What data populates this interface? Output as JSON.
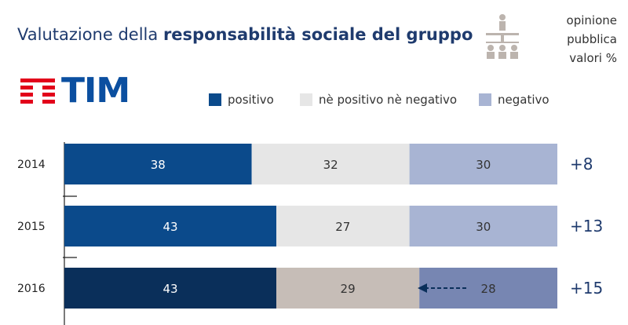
{
  "header": {
    "title_regular": "Valutazione della ",
    "title_bold": "responsabilità sociale del gruppo",
    "note_lines": [
      "opinione",
      "pubblica",
      "valori %"
    ],
    "audience_icon": "audience-presentation-icon"
  },
  "logo": {
    "text": "TIM",
    "color": "#0b4fa0",
    "stripes_color": "#e2001a"
  },
  "legend": [
    {
      "label": "positivo",
      "color": "#0b4a8b"
    },
    {
      "label": "nè positivo nè negativo",
      "color": "#e6e6e6"
    },
    {
      "label": "negativo",
      "color": "#a8b4d3"
    }
  ],
  "chart_data": {
    "type": "bar",
    "orientation": "horizontal",
    "stacked": true,
    "categories": [
      "2014",
      "2015",
      "2016"
    ],
    "series": [
      {
        "name": "positivo",
        "values": [
          38,
          43,
          43
        ],
        "colors": [
          "#0b4a8b",
          "#0b4a8b",
          "#0a2f5a"
        ]
      },
      {
        "name": "nè positivo nè negativo",
        "values": [
          32,
          27,
          29
        ],
        "colors": [
          "#e6e6e6",
          "#e6e6e6",
          "#c6bdb7"
        ]
      },
      {
        "name": "negativo",
        "values": [
          30,
          30,
          28
        ],
        "colors": [
          "#a8b4d3",
          "#a8b4d3",
          "#7786b2"
        ]
      }
    ],
    "annotations": [
      "+8",
      "+13",
      "+15"
    ],
    "xlim": [
      0,
      100
    ],
    "legend_position": "top",
    "grid": false,
    "arrow": {
      "row": "2016",
      "direction": "left",
      "style": "dashed"
    }
  }
}
